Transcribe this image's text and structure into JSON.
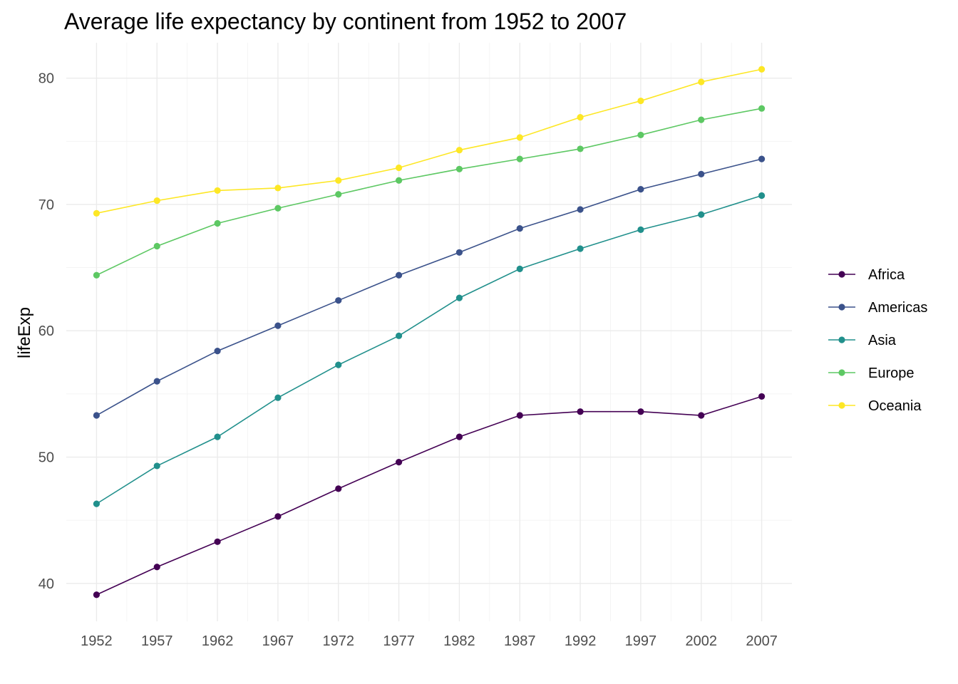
{
  "chart_data": {
    "type": "line",
    "title": "Average life expectancy by continent from 1952 to 2007",
    "xlabel": "",
    "ylabel": "lifeExp",
    "x": [
      1952,
      1957,
      1962,
      1967,
      1972,
      1977,
      1982,
      1987,
      1992,
      1997,
      2002,
      2007
    ],
    "xlim": [
      1949.5,
      2009.5
    ],
    "ylim": [
      37,
      82.8
    ],
    "yticks": [
      40,
      50,
      60,
      70,
      80
    ],
    "grid": true,
    "legend_position": "right",
    "series": [
      {
        "name": "Africa",
        "color": "#440154",
        "values": [
          39.1,
          41.3,
          43.3,
          45.3,
          47.5,
          49.6,
          51.6,
          53.3,
          53.6,
          53.6,
          53.3,
          54.8
        ]
      },
      {
        "name": "Americas",
        "color": "#3b528b",
        "values": [
          53.3,
          56.0,
          58.4,
          60.4,
          62.4,
          64.4,
          66.2,
          68.1,
          69.6,
          71.2,
          72.4,
          73.6
        ]
      },
      {
        "name": "Asia",
        "color": "#21908c",
        "values": [
          46.3,
          49.3,
          51.6,
          54.7,
          57.3,
          59.6,
          62.6,
          64.9,
          66.5,
          68.0,
          69.2,
          70.7
        ]
      },
      {
        "name": "Europe",
        "color": "#5dc863",
        "values": [
          64.4,
          66.7,
          68.5,
          69.7,
          70.8,
          71.9,
          72.8,
          73.6,
          74.4,
          75.5,
          76.7,
          77.6
        ]
      },
      {
        "name": "Oceania",
        "color": "#fde725",
        "values": [
          69.3,
          70.3,
          71.1,
          71.3,
          71.9,
          72.9,
          74.3,
          75.3,
          76.9,
          78.2,
          79.7,
          80.7
        ]
      }
    ]
  }
}
